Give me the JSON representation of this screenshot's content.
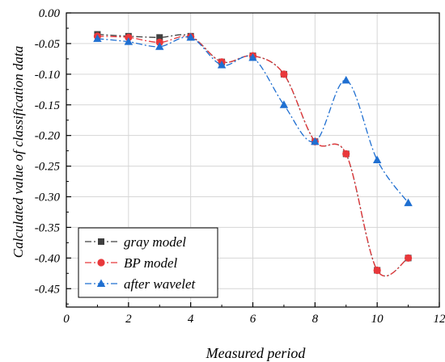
{
  "chart_data": {
    "type": "line",
    "title": "",
    "xlabel": "Measured period",
    "ylabel": "Calculated value of classification data",
    "xlim": [
      0,
      12
    ],
    "ylim": [
      -0.48,
      0
    ],
    "xticks": [
      0,
      2,
      4,
      6,
      8,
      10,
      12
    ],
    "yticks": [
      0.0,
      -0.05,
      -0.1,
      -0.15,
      -0.2,
      -0.25,
      -0.3,
      -0.35,
      -0.4,
      -0.45
    ],
    "xtick_labels": [
      "0",
      "2",
      "4",
      "6",
      "8",
      "10",
      "12"
    ],
    "ytick_labels": [
      "0.00",
      "-0.05",
      "-0.10",
      "-0.15",
      "-0.20",
      "-0.25",
      "-0.30",
      "-0.35",
      "-0.40",
      "-0.45"
    ],
    "grid": true,
    "legend_position": "bottom-left",
    "x": [
      1,
      2,
      3,
      4,
      5,
      6,
      7,
      8,
      9,
      10,
      11
    ],
    "series": [
      {
        "name": "gray model",
        "color": "#404040",
        "marker": "square",
        "dash": "dash-dot",
        "values": [
          -0.035,
          -0.038,
          -0.04,
          -0.038,
          -0.08,
          -0.07,
          -0.1,
          -0.21,
          -0.23,
          -0.42,
          -0.4
        ]
      },
      {
        "name": "BP model",
        "color": "#e8383b",
        "marker": "circle",
        "dash": "dash-dot",
        "values": [
          -0.038,
          -0.04,
          -0.048,
          -0.039,
          -0.08,
          -0.07,
          -0.1,
          -0.21,
          -0.23,
          -0.42,
          -0.4
        ]
      },
      {
        "name": "after wavelet",
        "color": "#1f6fd1",
        "marker": "triangle",
        "dash": "dash-dot",
        "values": [
          -0.042,
          -0.047,
          -0.055,
          -0.04,
          -0.085,
          -0.073,
          -0.15,
          -0.21,
          -0.11,
          -0.24,
          -0.31
        ]
      }
    ]
  }
}
